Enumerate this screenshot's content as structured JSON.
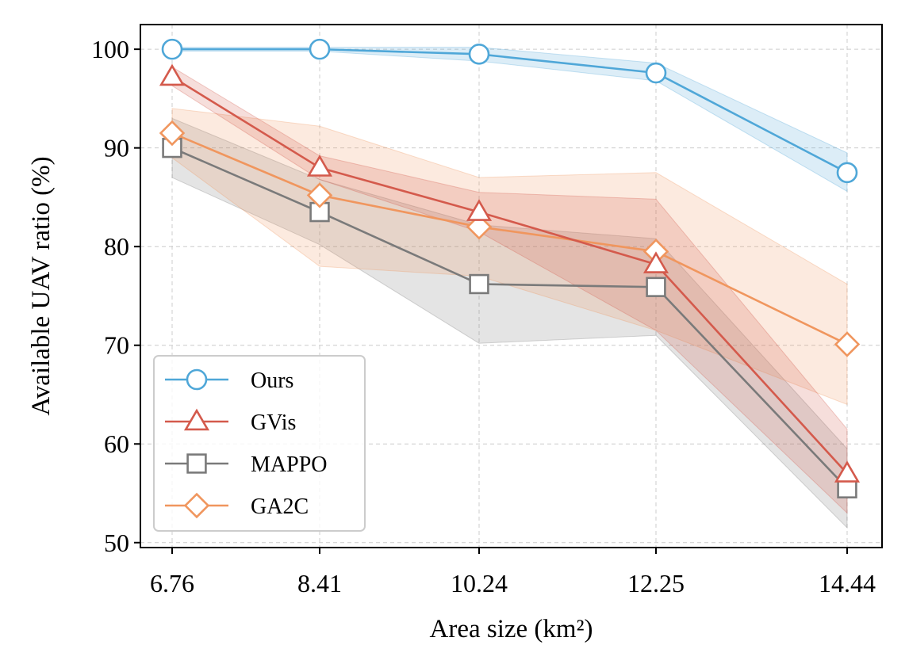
{
  "chart_data": {
    "type": "line",
    "title": "",
    "xlabel": "Area size (km²)",
    "ylabel": "Available UAV ratio (%)",
    "x": [
      6.76,
      8.41,
      10.24,
      12.25,
      14.44
    ],
    "x_tick_labels": [
      "6.76",
      "8.41",
      "10.24",
      "12.25",
      "14.44"
    ],
    "y_ticks": [
      50,
      60,
      70,
      80,
      90,
      100
    ],
    "y_tick_labels": [
      "50",
      "60",
      "70",
      "80",
      "90",
      "100"
    ],
    "ylim": [
      49.5,
      102.5
    ],
    "grid": true,
    "legend_position": "lower-left",
    "series": [
      {
        "name": "Ours",
        "marker": "circle",
        "color": "#4fa7d8",
        "values": [
          100,
          100,
          99.5,
          97.6,
          87.5
        ],
        "band_low": [
          99.8,
          99.8,
          98.8,
          96.8,
          85.6
        ],
        "band_high": [
          100.2,
          100.2,
          100.2,
          98.6,
          89.5
        ]
      },
      {
        "name": "GVis",
        "marker": "triangle",
        "color": "#d45a4c",
        "values": [
          97.2,
          88.0,
          83.5,
          78.2,
          57.0
        ],
        "band_low": [
          96.3,
          86.8,
          81.5,
          71.5,
          53.0
        ],
        "band_high": [
          98.2,
          89.2,
          85.5,
          84.8,
          61.5
        ]
      },
      {
        "name": "MAPPO",
        "marker": "square",
        "color": "#7a7a7a",
        "values": [
          90.0,
          83.5,
          76.2,
          75.9,
          55.5
        ],
        "band_low": [
          87.0,
          80.2,
          70.2,
          71.0,
          51.5
        ],
        "band_high": [
          93.0,
          86.8,
          82.2,
          80.8,
          59.5
        ]
      },
      {
        "name": "GA2C",
        "marker": "diamond",
        "color": "#f0965e",
        "values": [
          91.5,
          85.2,
          82.0,
          79.5,
          70.1
        ],
        "band_low": [
          89.0,
          78.0,
          77.0,
          71.5,
          64.0
        ],
        "band_high": [
          94.0,
          92.2,
          87.0,
          87.5,
          76.2
        ]
      }
    ]
  }
}
